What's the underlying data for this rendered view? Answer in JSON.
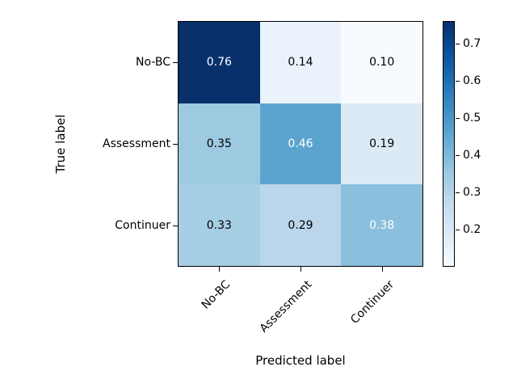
{
  "chart_data": {
    "type": "heatmap",
    "title": "",
    "xlabel": "Predicted label",
    "ylabel": "True label",
    "x_categories": [
      "No-BC",
      "Assessment",
      "Continuer"
    ],
    "y_categories": [
      "No-BC",
      "Assessment",
      "Continuer"
    ],
    "matrix": [
      [
        0.76,
        0.14,
        0.1
      ],
      [
        0.35,
        0.46,
        0.19
      ],
      [
        0.33,
        0.29,
        0.38
      ]
    ],
    "value_decimals": 2,
    "vmin": 0.1,
    "vmax": 0.76,
    "colormap": "Blues",
    "colormap_stops": [
      "#f7fbff",
      "#deebf7",
      "#c6dbef",
      "#9ecae1",
      "#6baed6",
      "#4292c6",
      "#2171b5",
      "#08519c",
      "#08306b"
    ],
    "cell_colors": [
      [
        "#08306b",
        "#eaf3fb",
        "#f7fbff"
      ],
      [
        "#9dc9e1",
        "#5ca4d0",
        "#dceaf6"
      ],
      [
        "#a6cee4",
        "#bad6eb",
        "#8abfdd"
      ]
    ],
    "cell_text_colors": [
      [
        "#ffffff",
        "#000000",
        "#000000"
      ],
      [
        "#000000",
        "#ffffff",
        "#000000"
      ],
      [
        "#000000",
        "#000000",
        "#ffffff"
      ]
    ],
    "colorbar_ticks": [
      0.7,
      0.6,
      0.5,
      0.4,
      0.3,
      0.2
    ],
    "colorbar_tick_decimals": 1,
    "grid_on": false,
    "legend": "none",
    "background_color": "#ffffff",
    "spine_color": "#000000"
  }
}
